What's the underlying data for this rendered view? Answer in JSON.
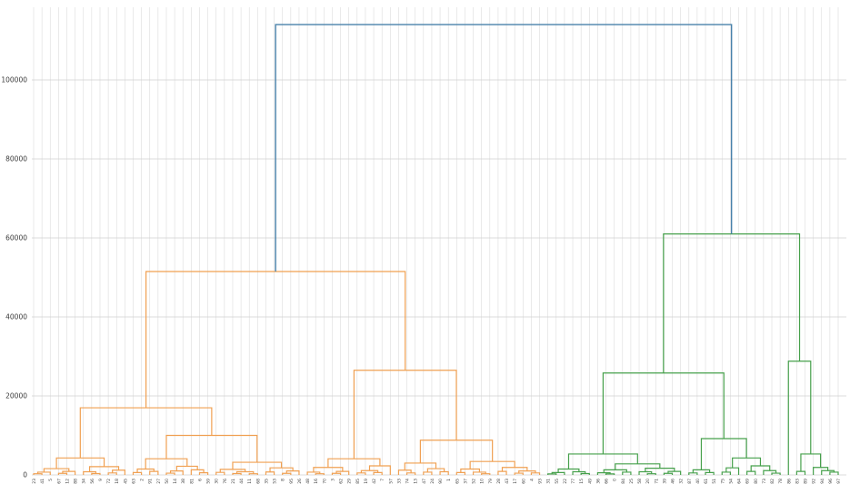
{
  "chart_data": {
    "type": "dendrogram",
    "title": "",
    "xlabel": "",
    "ylabel": "",
    "legend": null,
    "grid": true,
    "y_axis": {
      "ticks": [
        0,
        20000,
        40000,
        60000,
        80000,
        100000
      ],
      "tick_labels": [
        "0",
        "20000",
        "40000",
        "60000",
        "80000",
        "100000"
      ],
      "range": [
        0,
        117000
      ]
    },
    "leaf_count": 98,
    "major_merge_heights": {
      "root": 114000,
      "orange_cluster_root": 51500,
      "orange_left_subcluster": 17000,
      "orange_right_subcluster": 26500,
      "green_cluster_root": 61000,
      "green_left_subcluster": 25800,
      "green_right_subcluster": 28800
    },
    "colors": {
      "root_link": "#4881aa",
      "cluster_orange": "#f0a052",
      "cluster_green": "#46a04b",
      "gridline_v": "#dcdcdc",
      "gridline_h": "#cfcfcf",
      "tick_text": "#3a3a3a",
      "background": "#ffffff"
    },
    "tree": [
      114000,
      [
        51500,
        [
          17000,
          [
            4300,
            [
              1600,
              [
                700,
                [
                  300,
                  0,
                  0
                ],
                0
              ],
              [
                900,
                [
                  400,
                  0,
                  0
                ],
                0
              ]
            ],
            [
              2100,
              [
                800,
                0,
                [
                  350,
                  0,
                  0
                ]
              ],
              [
                1200,
                [
                  500,
                  0,
                  0
                ],
                0
              ]
            ]
          ],
          [
            10000,
            [
              4100,
              [
                1500,
                [
                  600,
                  0,
                  0
                ],
                [
                  900,
                  0,
                  0
                ]
              ],
              [
                2200,
                [
                  1000,
                  [
                    450,
                    0,
                    0
                  ],
                  0
                ],
                [
                  1300,
                  0,
                  [
                    550,
                    0,
                    0
                  ]
                ]
              ]
            ],
            [
              3200,
              [
                1400,
                [
                  650,
                  0,
                  0
                ],
                [
                  800,
                  [
                    350,
                    0,
                    0
                  ],
                  [
                    300,
                    0,
                    0
                  ]
                ]
              ],
              [
                1800,
                [
                  750,
                  0,
                  0
                ],
                [
                  1000,
                  [
                    400,
                    0,
                    0
                  ],
                  0
                ]
              ]
            ]
          ]
        ],
        [
          26500,
          [
            4100,
            [
              1900,
              [
                700,
                0,
                [
                  300,
                  0,
                  0
                ]
              ],
              [
                900,
                [
                  400,
                  0,
                  0
                ],
                0
              ]
            ],
            [
              2300,
              [
                1100,
                [
                  500,
                  0,
                  0
                ],
                [
                  600,
                  0,
                  0
                ]
              ],
              0
            ]
          ],
          [
            8800,
            [
              3000,
              [
                1200,
                0,
                [
                  500,
                  0,
                  0
                ]
              ],
              [
                1600,
                [
                  700,
                  0,
                  0
                ],
                [
                  800,
                  0,
                  0
                ]
              ]
            ],
            [
              3400,
              [
                1500,
                [
                  600,
                  0,
                  0
                ],
                [
                  700,
                  0,
                  [
                    300,
                    0,
                    0
                  ]
                ]
              ],
              [
                1900,
                [
                  900,
                  0,
                  0
                ],
                [
                  1000,
                  [
                    450,
                    0,
                    0
                  ],
                  [
                    500,
                    0,
                    0
                  ]
                ]
              ]
            ]
          ]
        ]
      ],
      [
        61000,
        [
          25800,
          [
            5300,
            [
              1500,
              [
                600,
                [
                  250,
                  0,
                  0
                ],
                0
              ],
              [
                800,
                0,
                [
                  350,
                  0,
                  0
                ]
              ]
            ],
            [
              2800,
              [
                1300,
                [
                  550,
                  0,
                  [
                    250,
                    0,
                    0
                  ]
                ],
                [
                  700,
                  0,
                  0
                ]
              ],
              [
                1700,
                [
                  800,
                  0,
                  [
                    300,
                    0,
                    0
                  ]
                ],
                [
                  900,
                  [
                    400,
                    0,
                    0
                  ],
                  0
                ]
              ]
            ]
          ],
          [
            9200,
            [
              1300,
              [
                500,
                0,
                0
              ],
              [
                600,
                0,
                0
              ]
            ],
            [
              4300,
              [
                1800,
                [
                  700,
                  0,
                  0
                ],
                0
              ],
              [
                2300,
                [
                  900,
                  0,
                  0
                ],
                [
                  1100,
                  0,
                  [
                    450,
                    0,
                    0
                  ]
                ]
              ]
            ]
          ]
        ],
        [
          28800,
          0,
          [
            5300,
            [
              900,
              0,
              0
            ],
            [
              1900,
              0,
              [
                1100,
                0,
                [
                  700,
                  0,
                  0
                ]
              ]
            ]
          ]
        ]
      ]
    ],
    "leaf_labels": [
      "23",
      "41",
      "5",
      "67",
      "12",
      "88",
      "34",
      "56",
      "9",
      "72",
      "18",
      "45",
      "63",
      "2",
      "91",
      "27",
      "50",
      "14",
      "38",
      "81",
      "6",
      "59",
      "30",
      "76",
      "21",
      "44",
      "11",
      "68",
      "35",
      "53",
      "8",
      "95",
      "26",
      "48",
      "16",
      "70",
      "3",
      "62",
      "29",
      "85",
      "19",
      "42",
      "7",
      "57",
      "33",
      "74",
      "13",
      "47",
      "24",
      "90",
      "1",
      "65",
      "37",
      "52",
      "10",
      "79",
      "28",
      "43",
      "17",
      "60",
      "4",
      "93",
      "31",
      "55",
      "22",
      "77",
      "15",
      "49",
      "36",
      "66",
      "0",
      "84",
      "25",
      "58",
      "20",
      "71",
      "39",
      "46",
      "32",
      "87",
      "40",
      "61",
      "51",
      "75",
      "54",
      "64",
      "69",
      "80",
      "73",
      "82",
      "78",
      "86",
      "83",
      "89",
      "92",
      "94",
      "96",
      "97"
    ]
  }
}
